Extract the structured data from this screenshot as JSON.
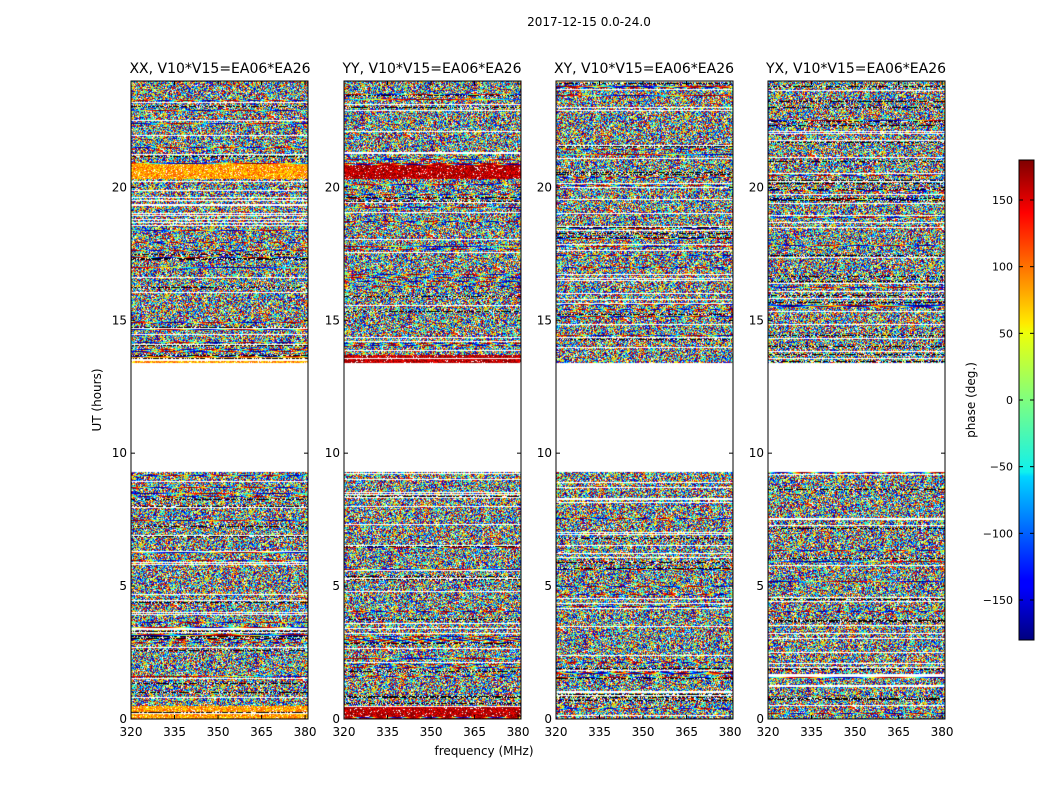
{
  "chart_data": {
    "type": "heatmap",
    "suptitle": "2017-12-15 0.0-24.0",
    "xlabel": "frequency (MHz)",
    "ylabel": "UT (hours)",
    "xlim": [
      320,
      381
    ],
    "ylim": [
      0,
      24
    ],
    "x_ticks": [
      320,
      335,
      350,
      365,
      380
    ],
    "y_ticks": [
      0,
      5,
      10,
      15,
      20
    ],
    "panels": [
      {
        "title": "XX, V10*V15=EA06*EA26",
        "polarization": "XX"
      },
      {
        "title": "YY, V10*V15=EA06*EA26",
        "polarization": "YY"
      },
      {
        "title": "XY, V10*V15=EA06*EA26",
        "polarization": "XY"
      },
      {
        "title": "YX, V10*V15=EA06*EA26",
        "polarization": "YX"
      }
    ],
    "no_data_range_hours": [
      9.3,
      13.4
    ],
    "colorbar": {
      "label": "phase (deg.)",
      "colormap": "jet",
      "range": [
        -180,
        180
      ],
      "ticks": [
        150,
        100,
        50,
        0,
        -50,
        -100,
        -150
      ],
      "tick_labels": [
        "150",
        "100",
        "50",
        "0",
        "−50",
        "−100",
        "−150"
      ]
    }
  }
}
